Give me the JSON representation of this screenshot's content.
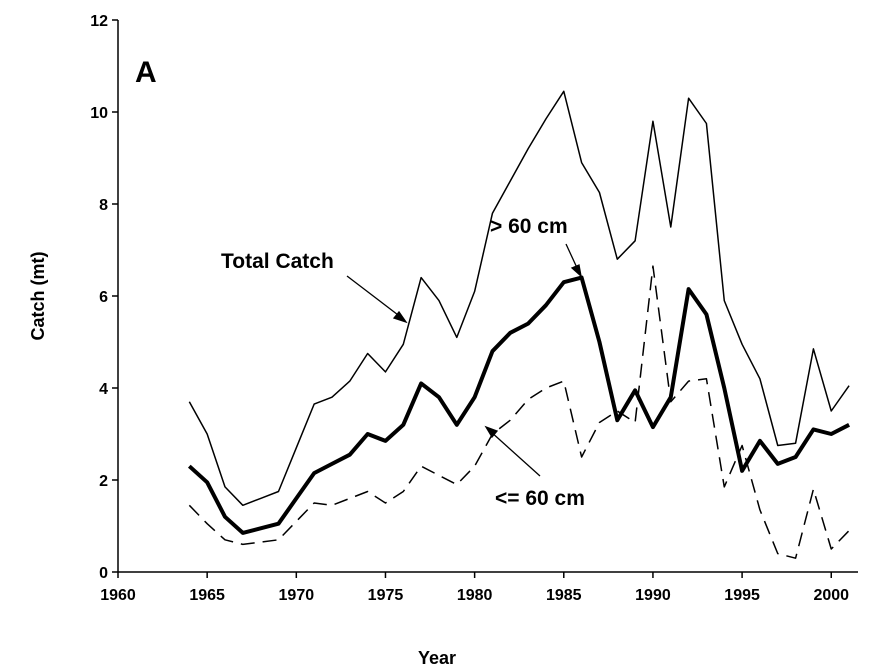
{
  "chart_data": {
    "type": "line",
    "panel_label": "A",
    "x_label": "Year",
    "y_label": "Catch (mt)",
    "x": [
      1964,
      1965,
      1966,
      1967,
      1968,
      1969,
      1970,
      1971,
      1972,
      1973,
      1974,
      1975,
      1976,
      1977,
      1978,
      1979,
      1980,
      1981,
      1982,
      1983,
      1984,
      1985,
      1986,
      1987,
      1988,
      1989,
      1990,
      1991,
      1992,
      1993,
      1994,
      1995,
      1996,
      1997,
      1998,
      1999,
      2000,
      2001
    ],
    "series": [
      {
        "name": "Total Catch",
        "color": "#000000",
        "style": "solid",
        "width": 1.5,
        "values": [
          3.7,
          3.0,
          1.85,
          1.45,
          1.6,
          1.75,
          2.7,
          3.65,
          3.8,
          4.15,
          4.75,
          4.35,
          4.95,
          6.4,
          5.9,
          5.1,
          6.1,
          7.8,
          8.5,
          9.2,
          9.85,
          10.45,
          8.9,
          8.25,
          6.8,
          7.2,
          9.8,
          7.5,
          10.3,
          9.75,
          5.9,
          4.95,
          4.2,
          2.75,
          2.8,
          4.85,
          3.5,
          4.05
        ]
      },
      {
        "name": "> 60 cm",
        "color": "#000000",
        "style": "solid",
        "width": 4,
        "values": [
          2.3,
          1.95,
          1.2,
          0.85,
          0.95,
          1.05,
          1.6,
          2.15,
          2.35,
          2.55,
          3.0,
          2.85,
          3.2,
          4.1,
          3.8,
          3.2,
          3.8,
          4.8,
          5.2,
          5.4,
          5.8,
          6.3,
          6.4,
          5.0,
          3.3,
          3.95,
          3.15,
          3.8,
          6.15,
          5.6,
          4.0,
          2.2,
          2.85,
          2.35,
          2.5,
          3.1,
          3.0,
          3.2
        ]
      },
      {
        "name": "<= 60 cm",
        "color": "#000000",
        "style": "dashed",
        "width": 1.5,
        "values": [
          1.45,
          1.05,
          0.7,
          0.6,
          0.65,
          0.7,
          1.1,
          1.5,
          1.45,
          1.6,
          1.75,
          1.5,
          1.75,
          2.3,
          2.1,
          1.9,
          2.3,
          3.0,
          3.3,
          3.75,
          4.0,
          4.15,
          2.5,
          3.25,
          3.5,
          3.25,
          6.65,
          3.7,
          4.15,
          4.2,
          1.85,
          2.75,
          1.35,
          0.4,
          0.3,
          1.8,
          0.5,
          0.9
        ]
      }
    ],
    "xlim": [
      1960,
      2001.5
    ],
    "xticks": [
      1960,
      1965,
      1970,
      1975,
      1980,
      1985,
      1990,
      1995,
      2000
    ],
    "ylim": [
      0,
      12
    ],
    "yticks": [
      0,
      2,
      4,
      6,
      8,
      10,
      12
    ]
  }
}
